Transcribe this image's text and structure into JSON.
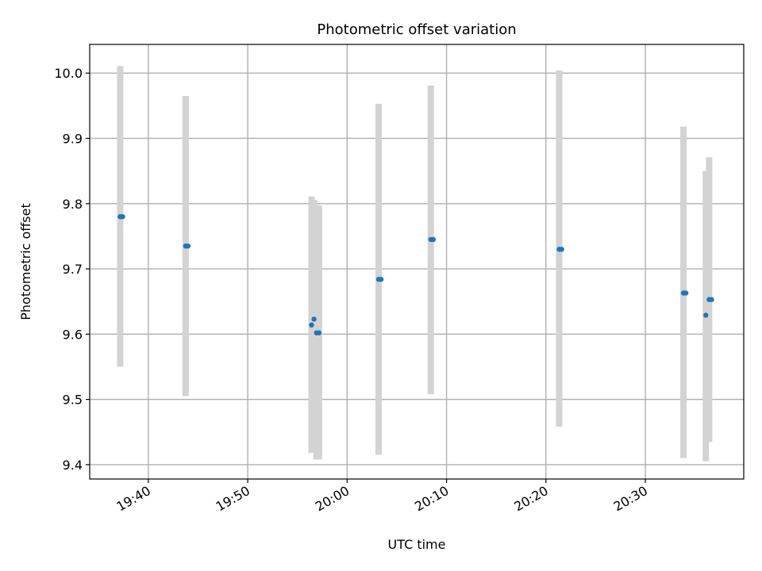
{
  "chart_data": {
    "type": "scatter",
    "title": "Photometric offset variation",
    "xlabel": "UTC time",
    "ylabel": "Photometric offset",
    "x_ticks": [
      "19:40",
      "19:50",
      "20:00",
      "20:10",
      "20:20",
      "20:30"
    ],
    "x_tick_minutes": [
      1180,
      1190,
      1200,
      1210,
      1220,
      1230
    ],
    "y_ticks": [
      "9.4",
      "9.5",
      "9.6",
      "9.7",
      "9.8",
      "9.9",
      "10.0"
    ],
    "xlim_minutes": [
      1174.1,
      1239.9
    ],
    "ylim": [
      9.378,
      10.044
    ],
    "grid": true,
    "colors": {
      "points": "#1f77b4",
      "errorbars": "#d3d3d3"
    },
    "points": [
      {
        "time": "19:37:10",
        "y": 9.78,
        "ylow": 9.55,
        "yhigh": 10.011
      },
      {
        "time": "19:37:25",
        "y": 9.78,
        "ylow": 9.78,
        "yhigh": 9.78
      },
      {
        "time": "19:43:45",
        "y": 9.735,
        "ylow": 9.505,
        "yhigh": 9.965
      },
      {
        "time": "19:44:00",
        "y": 9.735,
        "ylow": 9.735,
        "yhigh": 9.735
      },
      {
        "time": "19:56:25",
        "y": 9.614,
        "ylow": 9.418,
        "yhigh": 9.811
      },
      {
        "time": "19:56:40",
        "y": 9.623,
        "ylow": 9.425,
        "yhigh": 9.806
      },
      {
        "time": "19:56:55",
        "y": 9.602,
        "ylow": 9.408,
        "yhigh": 9.798
      },
      {
        "time": "19:57:10",
        "y": 9.602,
        "ylow": 9.408,
        "yhigh": 9.797
      },
      {
        "time": "20:03:10",
        "y": 9.684,
        "ylow": 9.415,
        "yhigh": 9.953
      },
      {
        "time": "20:03:25",
        "y": 9.684,
        "ylow": 9.684,
        "yhigh": 9.684
      },
      {
        "time": "20:08:25",
        "y": 9.745,
        "ylow": 9.508,
        "yhigh": 9.981
      },
      {
        "time": "20:08:40",
        "y": 9.745,
        "ylow": 9.745,
        "yhigh": 9.745
      },
      {
        "time": "20:21:20",
        "y": 9.73,
        "ylow": 9.458,
        "yhigh": 10.004
      },
      {
        "time": "20:21:35",
        "y": 9.73,
        "ylow": 9.73,
        "yhigh": 9.73
      },
      {
        "time": "20:33:50",
        "y": 9.663,
        "ylow": 9.41,
        "yhigh": 9.918
      },
      {
        "time": "20:34:05",
        "y": 9.663,
        "ylow": 9.663,
        "yhigh": 9.663
      },
      {
        "time": "20:36:05",
        "y": 9.629,
        "ylow": 9.405,
        "yhigh": 9.85
      },
      {
        "time": "20:36:25",
        "y": 9.653,
        "ylow": 9.435,
        "yhigh": 9.871
      },
      {
        "time": "20:36:40",
        "y": 9.653,
        "ylow": 9.653,
        "yhigh": 9.653
      }
    ]
  }
}
